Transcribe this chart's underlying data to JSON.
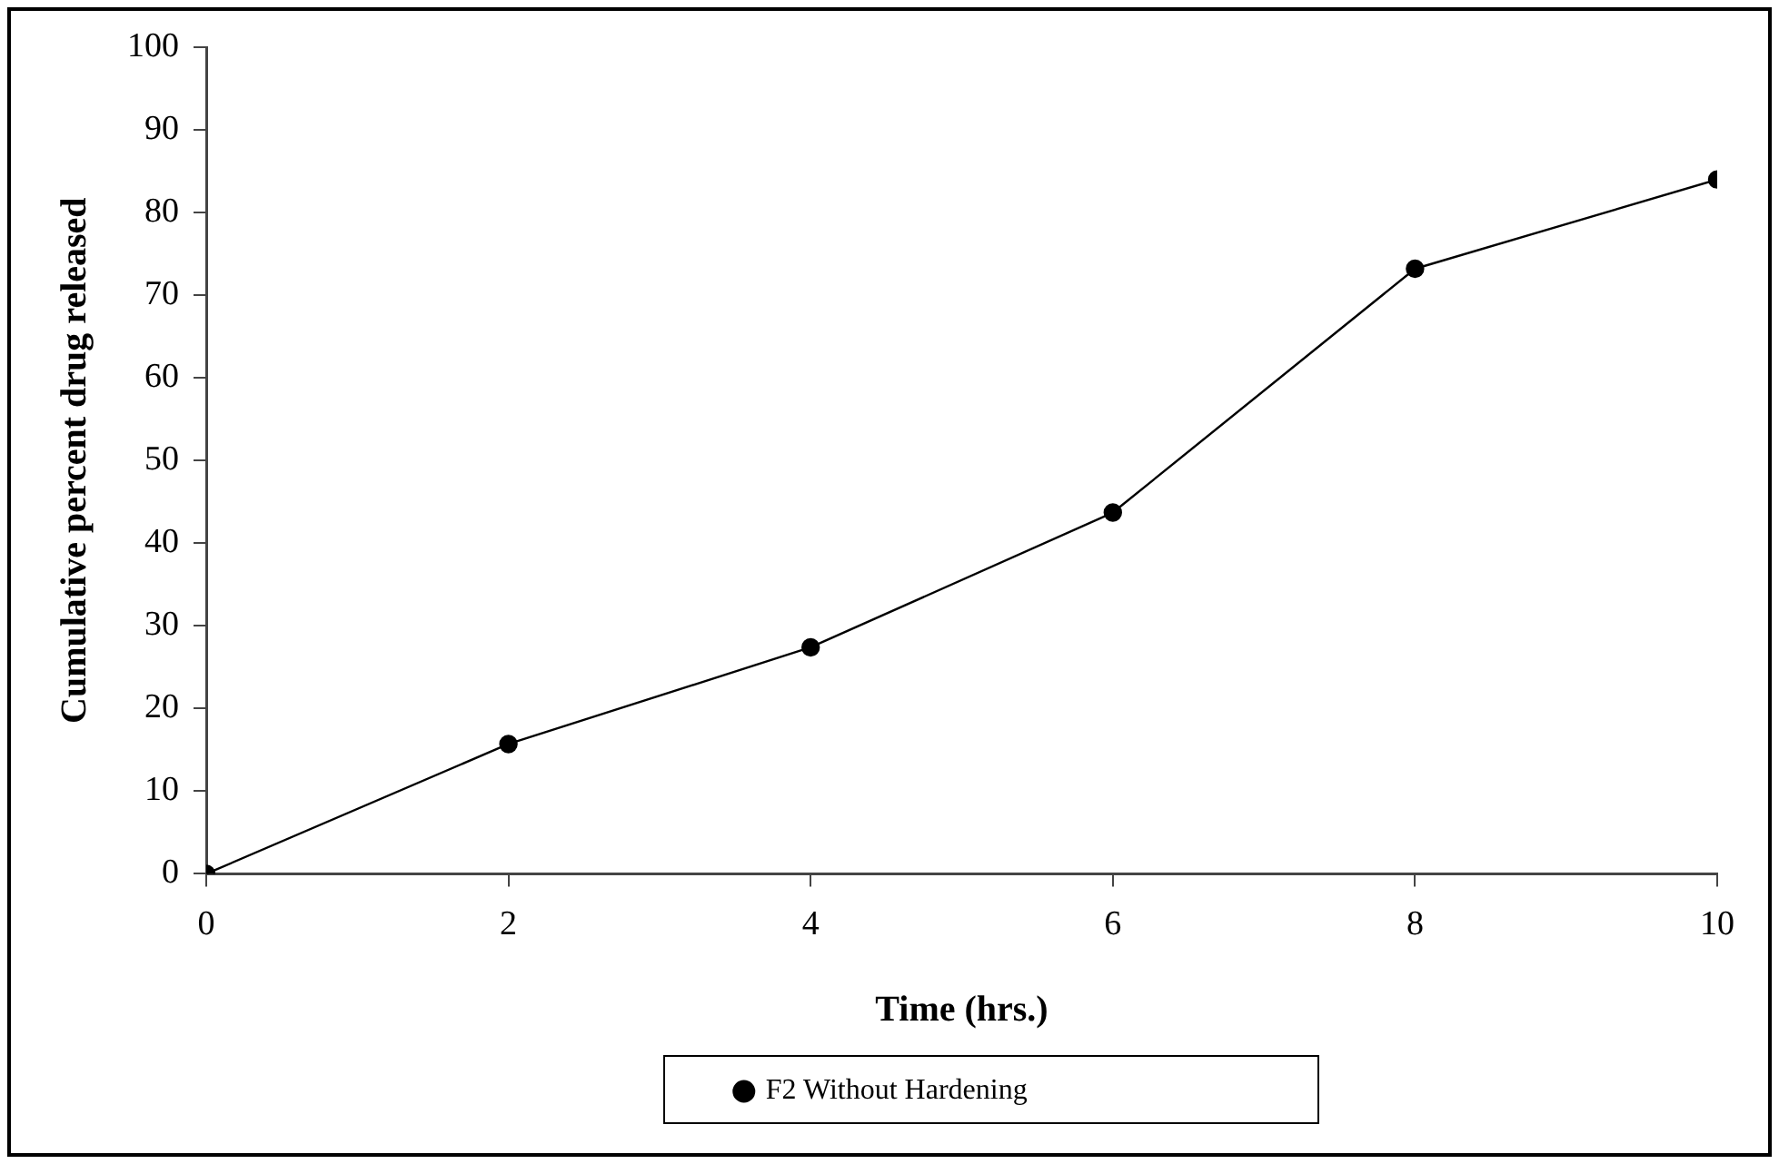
{
  "chart_data": {
    "type": "line",
    "xlabel": "Time (hrs.)",
    "ylabel": "Cumulative percent drug released",
    "x": [
      0,
      2,
      4,
      6,
      8,
      10
    ],
    "series": [
      {
        "name": "F2 Without Hardening",
        "color": "#000000",
        "values": [
          0,
          15.7,
          27.4,
          43.7,
          73.2,
          84.0
        ]
      }
    ],
    "xlim": [
      0,
      10
    ],
    "xticks": [
      0,
      2,
      4,
      6,
      8,
      10
    ],
    "ylim": [
      0,
      100
    ],
    "yticks": [
      0,
      10,
      20,
      30,
      40,
      50,
      60,
      70,
      80,
      90,
      100
    ],
    "grid": false,
    "legend": "bottom",
    "marker": "circle",
    "line_style": "solid"
  }
}
